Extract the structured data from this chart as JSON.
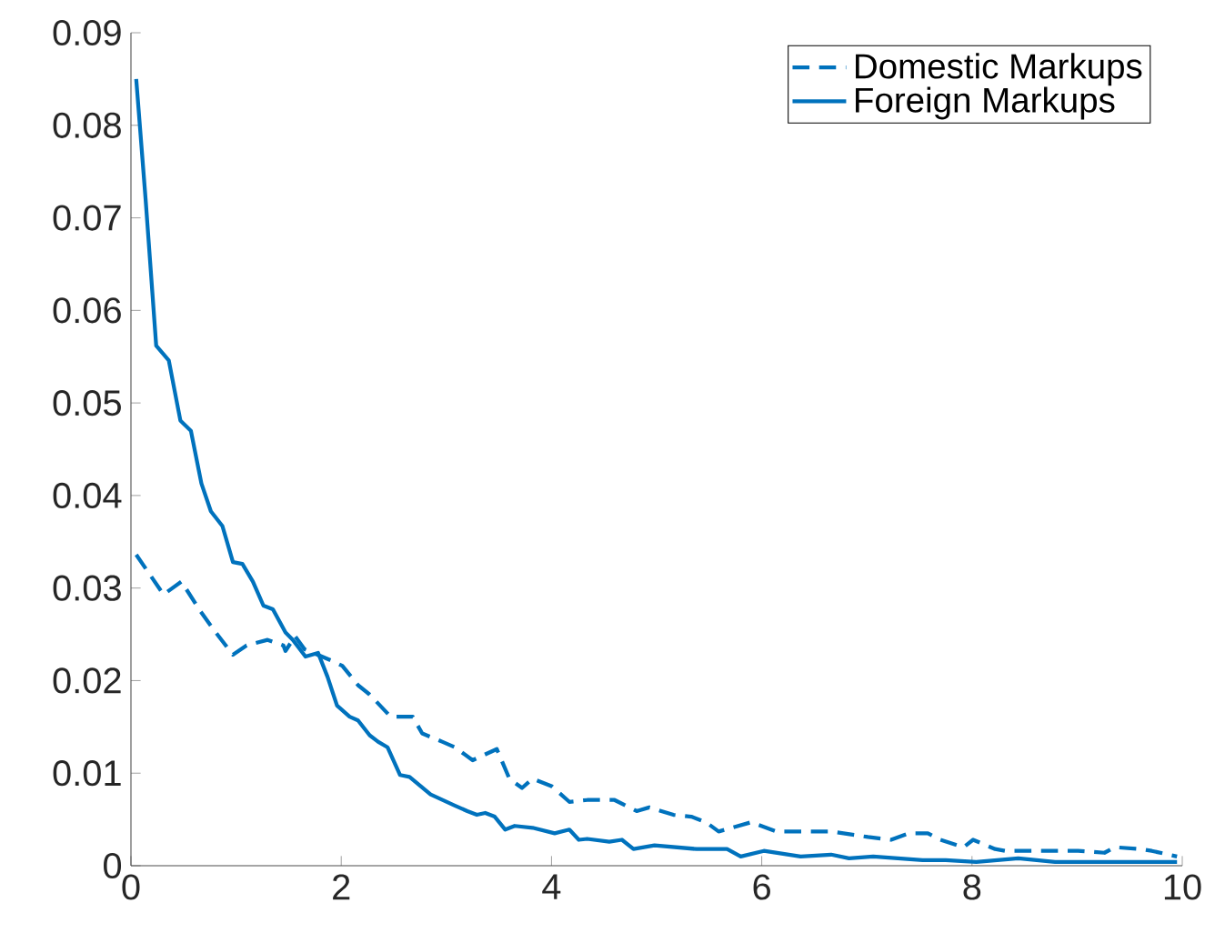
{
  "chart_data": {
    "type": "line",
    "xlim": [
      0,
      10
    ],
    "ylim": [
      0,
      0.09
    ],
    "xticks": [
      0,
      2,
      4,
      6,
      8,
      10
    ],
    "yticks": [
      0,
      0.01,
      0.02,
      0.03,
      0.04,
      0.05,
      0.06,
      0.07,
      0.08,
      0.09
    ],
    "grid": false,
    "legend": "top right",
    "marker": "none",
    "series": [
      {
        "name": "Domestic Markups",
        "color": "#0072bd",
        "line_style": "dashed",
        "x": [
          0.05,
          0.31,
          0.48,
          0.66,
          0.8,
          0.97,
          1.1,
          1.3,
          1.45,
          1.47,
          1.56,
          1.65,
          1.9,
          2.01,
          2.16,
          2.27,
          2.47,
          2.68,
          2.77,
          2.96,
          3.08,
          3.25,
          3.48,
          3.6,
          3.72,
          3.82,
          4.0,
          4.17,
          4.34,
          4.6,
          4.81,
          4.93,
          5.16,
          5.33,
          5.47,
          5.59,
          5.9,
          6.14,
          6.49,
          6.66,
          7.01,
          7.23,
          7.4,
          7.58,
          7.7,
          7.92,
          8.01,
          8.22,
          8.32,
          8.56,
          8.79,
          9.01,
          9.26,
          9.36,
          9.6,
          9.71,
          9.95
        ],
        "values": [
          0.0336,
          0.0293,
          0.0307,
          0.0275,
          0.0253,
          0.0228,
          0.0238,
          0.0244,
          0.0238,
          0.0232,
          0.0248,
          0.0234,
          0.0222,
          0.0216,
          0.0195,
          0.0185,
          0.0161,
          0.0161,
          0.0143,
          0.0134,
          0.0128,
          0.0114,
          0.0126,
          0.0094,
          0.0084,
          0.0094,
          0.0086,
          0.0069,
          0.0071,
          0.0071,
          0.0059,
          0.0063,
          0.0055,
          0.0053,
          0.0047,
          0.0037,
          0.0047,
          0.0037,
          0.0037,
          0.0037,
          0.0031,
          0.0028,
          0.0035,
          0.0035,
          0.0028,
          0.002,
          0.0028,
          0.0018,
          0.0016,
          0.0016,
          0.0016,
          0.0016,
          0.0014,
          0.002,
          0.0018,
          0.0016,
          0.001
        ]
      },
      {
        "name": "Foreign Markups",
        "color": "#0072bd",
        "line_style": "solid",
        "x": [
          0.05,
          0.14,
          0.24,
          0.36,
          0.47,
          0.57,
          0.67,
          0.76,
          0.87,
          0.97,
          1.06,
          1.16,
          1.26,
          1.35,
          1.47,
          1.54,
          1.66,
          1.78,
          1.87,
          1.96,
          2.08,
          2.16,
          2.27,
          2.35,
          2.44,
          2.56,
          2.65,
          2.85,
          3.08,
          3.2,
          3.29,
          3.37,
          3.46,
          3.56,
          3.65,
          3.82,
          4.03,
          4.17,
          4.26,
          4.34,
          4.55,
          4.67,
          4.78,
          4.98,
          5.38,
          5.67,
          5.8,
          6.02,
          6.37,
          6.66,
          6.83,
          7.06,
          7.53,
          7.75,
          8.04,
          8.44,
          8.79,
          9.36,
          9.95
        ],
        "values": [
          0.085,
          0.0719,
          0.0562,
          0.0546,
          0.0481,
          0.047,
          0.0413,
          0.0383,
          0.0367,
          0.0328,
          0.0326,
          0.0307,
          0.0281,
          0.0277,
          0.0252,
          0.0244,
          0.0226,
          0.023,
          0.0204,
          0.0173,
          0.0161,
          0.0157,
          0.0141,
          0.0134,
          0.0128,
          0.0098,
          0.0096,
          0.0077,
          0.0065,
          0.0059,
          0.0055,
          0.0057,
          0.0053,
          0.0039,
          0.0043,
          0.0041,
          0.0035,
          0.0039,
          0.0028,
          0.0029,
          0.0026,
          0.0028,
          0.0018,
          0.0022,
          0.0018,
          0.0018,
          0.001,
          0.0016,
          0.001,
          0.0012,
          0.0008,
          0.001,
          0.0006,
          0.0006,
          0.0004,
          0.0008,
          0.0004,
          0.0004,
          0.0004
        ]
      }
    ]
  }
}
